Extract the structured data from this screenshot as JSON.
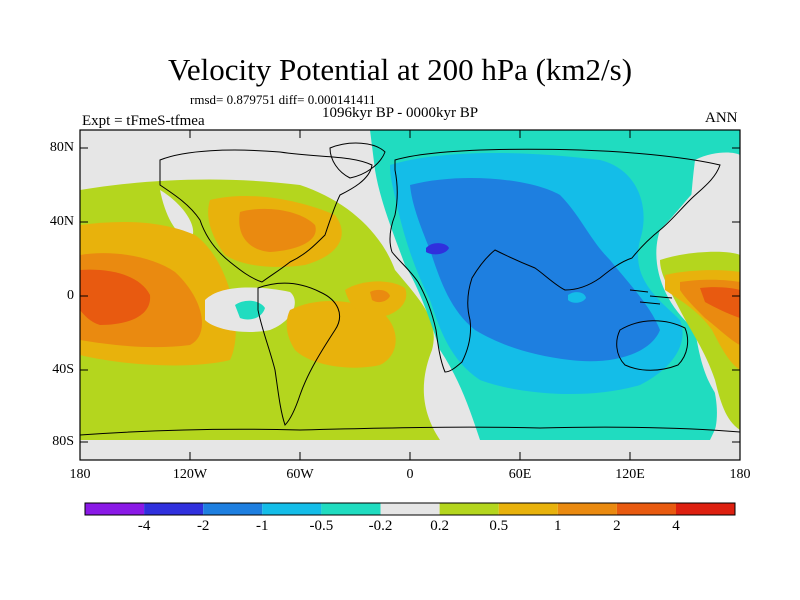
{
  "title": "Velocity Potential at 200 hPa (km2/s)",
  "stats": "rmsd= 0.879751  diff= 0.000141411",
  "period": "1096kyr BP - 0000kyr BP",
  "experiment": "Expt = tFmeS-tfmea",
  "season": "ANN",
  "lat_labels": [
    "80N",
    "40N",
    "0",
    "40S",
    "80S"
  ],
  "lon_labels": [
    "180",
    "120W",
    "60W",
    "0",
    "60E",
    "120E",
    "180"
  ],
  "colorbar": {
    "labels": [
      "-4",
      "-2",
      "-1",
      "-0.5",
      "-0.2",
      "0.2",
      "0.5",
      "1",
      "2",
      "4"
    ],
    "colors": [
      "#8a19e6",
      "#3030dd",
      "#1e7fe0",
      "#14bde8",
      "#20dcc0",
      "#e6e6e6",
      "#b4d61e",
      "#e8b20c",
      "#ea8a10",
      "#e85a10",
      "#dd2010"
    ]
  },
  "palette": {
    "neutral": "#e6e6e6",
    "teal": "#20dcc0",
    "cyan": "#14bde8",
    "blue": "#1e7fe0",
    "darkblue": "#3030dd",
    "lime": "#b4d61e",
    "yellow": "#e8b20c",
    "orange": "#ea8a10",
    "red": "#e85a10"
  }
}
